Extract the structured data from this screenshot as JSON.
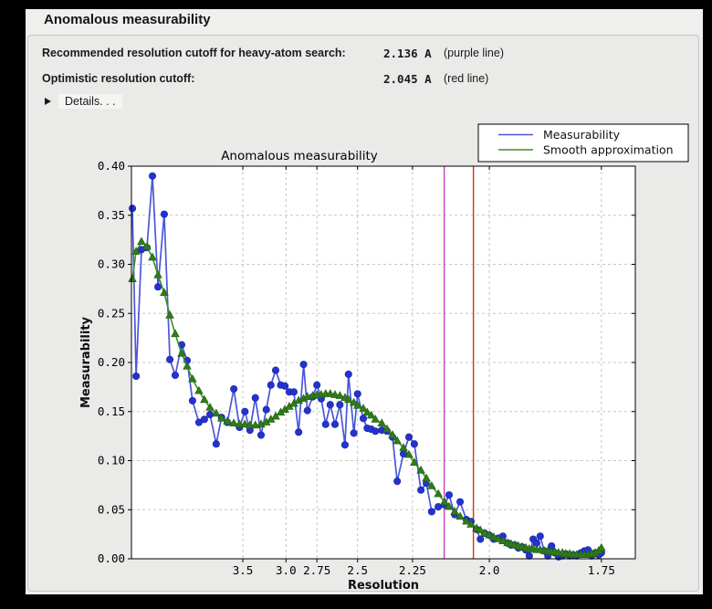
{
  "header": {
    "title": "Anomalous measurability"
  },
  "info_rows": [
    {
      "label": "Recommended resolution cutoff for heavy-atom search:",
      "value": "2.136 A",
      "note": "(purple line)"
    },
    {
      "label": "Optimistic resolution cutoff:",
      "value": "2.045 A",
      "note": "(red line)"
    }
  ],
  "details": {
    "label": "Details. . .",
    "icon": "disclosure-triangle-right"
  },
  "chart_data": {
    "type": "line",
    "title": "Anomalous measurability",
    "xlabel": "Resolution",
    "ylabel": "Measurability",
    "x_axis": {
      "scale": "1/d^2",
      "d_min": 13.42,
      "d_max": 1.691,
      "ticks": [
        {
          "d": 3.5,
          "label": "3.5"
        },
        {
          "d": 3.0,
          "label": "3.0"
        },
        {
          "d": 2.75,
          "label": "2.75"
        },
        {
          "d": 2.5,
          "label": "2.5"
        },
        {
          "d": 2.25,
          "label": "2.25"
        },
        {
          "d": 2.0,
          "label": "2.0"
        },
        {
          "d": 1.75,
          "label": "1.75"
        }
      ]
    },
    "y_axis": {
      "min": 0.0,
      "max": 0.4,
      "ticks": [
        0.0,
        0.05,
        0.1,
        0.15,
        0.2,
        0.25,
        0.3,
        0.35,
        0.4
      ]
    },
    "grid": {
      "show": true,
      "style": "dashed",
      "color": "#c6c6c5"
    },
    "legend": {
      "position": "top-right"
    },
    "vlines": [
      {
        "resolution": 2.136,
        "color": "#c83cc8",
        "name": "purple line"
      },
      {
        "resolution": 2.045,
        "color": "#dd3405",
        "name": "red line"
      }
    ],
    "x_resolution": [
      12.7,
      10.7,
      8.98,
      7.87,
      7.09,
      6.5,
      5.98,
      5.61,
      5.31,
      5.01,
      4.79,
      4.6,
      4.4,
      4.25,
      4.11,
      3.97,
      3.86,
      3.75,
      3.64,
      3.55,
      3.47,
      3.4,
      3.33,
      3.26,
      3.2,
      3.15,
      3.1,
      3.05,
      3.01,
      2.97,
      2.93,
      2.89,
      2.85,
      2.82,
      2.78,
      2.75,
      2.72,
      2.69,
      2.66,
      2.63,
      2.6,
      2.57,
      2.55,
      2.52,
      2.5,
      2.47,
      2.45,
      2.43,
      2.41,
      2.38,
      2.356,
      2.332,
      2.312,
      2.286,
      2.264,
      2.243,
      2.218,
      2.198,
      2.179,
      2.156,
      2.135,
      2.12,
      2.102,
      2.085,
      2.066,
      2.052,
      2.036,
      2.025,
      2.013,
      2.0,
      1.988,
      1.976,
      1.964,
      1.952,
      1.943,
      1.934,
      1.925,
      1.916,
      1.907,
      1.899,
      1.89,
      1.882,
      1.874,
      1.865,
      1.857,
      1.849,
      1.842,
      1.834,
      1.826,
      1.819,
      1.811,
      1.804,
      1.797,
      1.789,
      1.782,
      1.775,
      1.768,
      1.761,
      1.755,
      1.75
    ],
    "series": [
      {
        "name": "Measurability",
        "marker": "circle",
        "color": "#2433cc",
        "line_color": "#4a57da",
        "values": [
          0.357,
          0.186,
          0.315,
          0.317,
          0.39,
          0.277,
          0.351,
          0.203,
          0.187,
          0.218,
          0.202,
          0.161,
          0.139,
          0.142,
          0.147,
          0.117,
          0.144,
          0.139,
          0.173,
          0.134,
          0.15,
          0.131,
          0.164,
          0.126,
          0.152,
          0.177,
          0.192,
          0.177,
          0.176,
          0.17,
          0.17,
          0.129,
          0.198,
          0.151,
          0.165,
          0.177,
          0.163,
          0.137,
          0.157,
          0.137,
          0.157,
          0.116,
          0.188,
          0.128,
          0.168,
          0.143,
          0.133,
          0.132,
          0.13,
          0.131,
          0.13,
          0.124,
          0.079,
          0.107,
          0.124,
          0.117,
          0.07,
          0.077,
          0.048,
          0.053,
          0.055,
          0.065,
          0.045,
          0.058,
          0.04,
          0.038,
          0.03,
          0.02,
          0.026,
          0.024,
          0.02,
          0.021,
          0.023,
          0.016,
          0.014,
          0.014,
          0.011,
          0.012,
          0.009,
          0.003,
          0.02,
          0.016,
          0.023,
          0.008,
          0.003,
          0.013,
          0.006,
          0.002,
          0.003,
          0.005,
          0.003,
          0.004,
          0.003,
          0.006,
          0.008,
          0.009,
          0.003,
          0.006,
          0.004,
          0.006
        ]
      },
      {
        "name": "Smooth approximation",
        "marker": "triangle",
        "color": "#2f7d1a",
        "line_color": "#3f8d28",
        "values": [
          0.285,
          0.313,
          0.323,
          0.318,
          0.307,
          0.289,
          0.271,
          0.248,
          0.229,
          0.209,
          0.196,
          0.183,
          0.171,
          0.162,
          0.154,
          0.148,
          0.143,
          0.14,
          0.138,
          0.137,
          0.137,
          0.136,
          0.136,
          0.137,
          0.139,
          0.142,
          0.145,
          0.149,
          0.152,
          0.155,
          0.158,
          0.161,
          0.163,
          0.165,
          0.166,
          0.167,
          0.167,
          0.168,
          0.168,
          0.167,
          0.166,
          0.164,
          0.162,
          0.159,
          0.156,
          0.153,
          0.149,
          0.146,
          0.142,
          0.138,
          0.132,
          0.126,
          0.12,
          0.113,
          0.106,
          0.098,
          0.09,
          0.082,
          0.074,
          0.066,
          0.058,
          0.053,
          0.048,
          0.043,
          0.038,
          0.035,
          0.031,
          0.029,
          0.026,
          0.024,
          0.022,
          0.02,
          0.018,
          0.016,
          0.015,
          0.014,
          0.013,
          0.012,
          0.011,
          0.01,
          0.01,
          0.009,
          0.009,
          0.008,
          0.008,
          0.007,
          0.007,
          0.006,
          0.006,
          0.005,
          0.005,
          0.004,
          0.004,
          0.004,
          0.004,
          0.004,
          0.005,
          0.006,
          0.008,
          0.011
        ]
      }
    ]
  }
}
